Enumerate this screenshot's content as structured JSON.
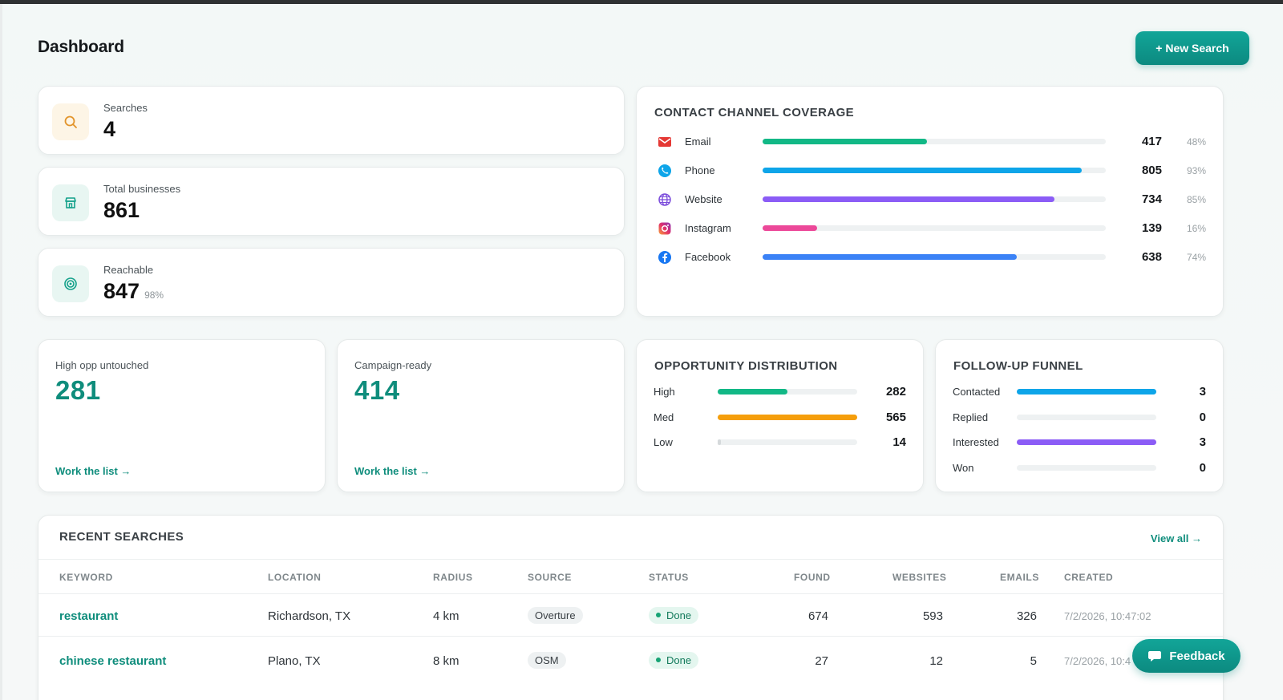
{
  "header": {
    "title": "Dashboard",
    "new_search_label": "+ New Search"
  },
  "stats": [
    {
      "label": "Searches",
      "value": "4",
      "icon": "search-icon"
    },
    {
      "label": "Total businesses",
      "value": "861",
      "icon": "store-icon"
    },
    {
      "label": "Reachable",
      "value": "847",
      "sub": "98%",
      "icon": "target-icon"
    }
  ],
  "channels": {
    "title": "CONTACT CHANNEL COVERAGE",
    "items": [
      {
        "name": "Email",
        "count": "417",
        "pct_label": "48%",
        "fraction": 0.48,
        "color": "#12b886",
        "icon": "email-icon"
      },
      {
        "name": "Phone",
        "count": "805",
        "pct_label": "93%",
        "fraction": 0.93,
        "color": "#0ea5e9",
        "icon": "phone-icon"
      },
      {
        "name": "Website",
        "count": "734",
        "pct_label": "85%",
        "fraction": 0.85,
        "color": "#8b5cf6",
        "icon": "globe-icon"
      },
      {
        "name": "Instagram",
        "count": "139",
        "pct_label": "16%",
        "fraction": 0.16,
        "color": "#ec4899",
        "icon": "instagram-icon"
      },
      {
        "name": "Facebook",
        "count": "638",
        "pct_label": "74%",
        "fraction": 0.74,
        "color": "#3b82f6",
        "icon": "facebook-icon"
      }
    ]
  },
  "high_opp": {
    "label": "High opp untouched",
    "value": "281",
    "link": "Work the list →"
  },
  "campaign": {
    "label": "Campaign-ready",
    "value": "414",
    "link": "Work the list →"
  },
  "opportunity": {
    "title": "OPPORTUNITY DISTRIBUTION",
    "items": [
      {
        "name": "High",
        "count": "282",
        "fraction": 0.5,
        "color": "#12b886"
      },
      {
        "name": "Med",
        "count": "565",
        "fraction": 1.0,
        "color": "#f59e0b"
      },
      {
        "name": "Low",
        "count": "14",
        "fraction": 0.025,
        "color": "#d5d9db"
      }
    ]
  },
  "funnel": {
    "title": "FOLLOW-UP FUNNEL",
    "items": [
      {
        "name": "Contacted",
        "count": "3",
        "fraction": 1.0,
        "color": "#0ea5e9"
      },
      {
        "name": "Replied",
        "count": "0",
        "fraction": 0,
        "color": "#0ea5e9"
      },
      {
        "name": "Interested",
        "count": "3",
        "fraction": 1.0,
        "color": "#8b5cf6"
      },
      {
        "name": "Won",
        "count": "0",
        "fraction": 0,
        "color": "#12b886"
      }
    ]
  },
  "recent": {
    "title": "RECENT SEARCHES",
    "view_all": "View all →",
    "columns": [
      "KEYWORD",
      "LOCATION",
      "RADIUS",
      "SOURCE",
      "STATUS",
      "FOUND",
      "WEBSITES",
      "EMAILS",
      "CREATED"
    ],
    "rows": [
      {
        "keyword": "restaurant",
        "location": "Richardson, TX",
        "radius": "4 km",
        "source": "Overture",
        "status": "Done",
        "found": "674",
        "websites": "593",
        "emails": "326",
        "created": "7/2/2026, 10:47:02"
      },
      {
        "keyword": "chinese restaurant",
        "location": "Plano, TX",
        "radius": "8 km",
        "source": "OSM",
        "status": "Done",
        "found": "27",
        "websites": "12",
        "emails": "5",
        "created": "7/2/2026, 10:4"
      }
    ]
  },
  "feedback_label": "Feedback"
}
